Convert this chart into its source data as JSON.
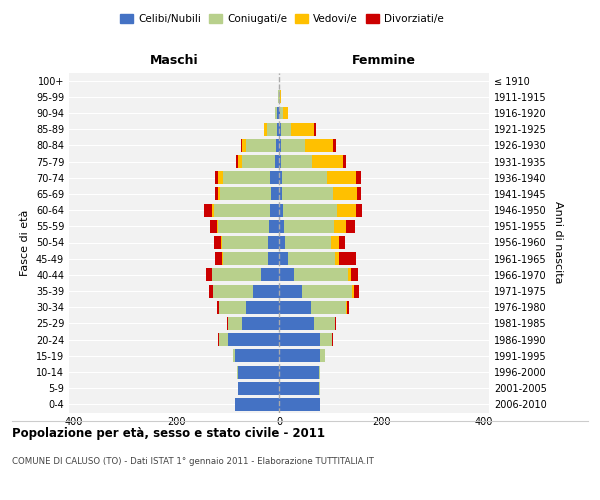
{
  "age_groups": [
    "0-4",
    "5-9",
    "10-14",
    "15-19",
    "20-24",
    "25-29",
    "30-34",
    "35-39",
    "40-44",
    "45-49",
    "50-54",
    "55-59",
    "60-64",
    "65-69",
    "70-74",
    "75-79",
    "80-84",
    "85-89",
    "90-94",
    "95-99",
    "100+"
  ],
  "birth_years": [
    "2006-2010",
    "2001-2005",
    "1996-2000",
    "1991-1995",
    "1986-1990",
    "1981-1985",
    "1976-1980",
    "1971-1975",
    "1966-1970",
    "1961-1965",
    "1956-1960",
    "1951-1955",
    "1946-1950",
    "1941-1945",
    "1936-1940",
    "1931-1935",
    "1926-1930",
    "1921-1925",
    "1916-1920",
    "1911-1915",
    "≤ 1910"
  ],
  "males_celibi": [
    85,
    80,
    80,
    85,
    100,
    72,
    65,
    50,
    35,
    22,
    22,
    20,
    18,
    15,
    18,
    8,
    6,
    4,
    3,
    0,
    0
  ],
  "males_coniugati": [
    0,
    1,
    2,
    5,
    18,
    28,
    52,
    78,
    95,
    88,
    90,
    100,
    108,
    100,
    92,
    65,
    58,
    20,
    5,
    2,
    0
  ],
  "males_vedovi": [
    0,
    0,
    0,
    0,
    0,
    0,
    0,
    1,
    1,
    2,
    2,
    2,
    5,
    5,
    10,
    8,
    8,
    5,
    0,
    0,
    0
  ],
  "males_divorziati": [
    0,
    0,
    0,
    0,
    2,
    2,
    5,
    8,
    12,
    12,
    12,
    12,
    15,
    5,
    5,
    3,
    2,
    0,
    0,
    0,
    0
  ],
  "females_nubili": [
    80,
    78,
    78,
    80,
    80,
    68,
    62,
    45,
    30,
    18,
    12,
    10,
    8,
    5,
    5,
    3,
    3,
    3,
    2,
    0,
    0
  ],
  "females_coniugate": [
    1,
    2,
    3,
    10,
    24,
    42,
    68,
    98,
    105,
    92,
    90,
    98,
    105,
    100,
    88,
    62,
    48,
    20,
    5,
    1,
    0
  ],
  "females_vedove": [
    0,
    0,
    0,
    0,
    0,
    0,
    2,
    3,
    5,
    8,
    16,
    22,
    38,
    48,
    58,
    60,
    55,
    45,
    10,
    2,
    0
  ],
  "females_divorziate": [
    0,
    0,
    0,
    0,
    2,
    2,
    5,
    10,
    15,
    32,
    10,
    18,
    12,
    8,
    10,
    5,
    5,
    5,
    0,
    0,
    0
  ],
  "colors_celibi": "#4472c4",
  "colors_coniugati": "#b8d08c",
  "colors_vedovi": "#ffc000",
  "colors_divorziati": "#cc0000",
  "title": "Popolazione per età, sesso e stato civile - 2011",
  "subtitle": "COMUNE DI CALUSO (TO) - Dati ISTAT 1° gennaio 2011 - Elaborazione TUTTITALIA.IT",
  "label_maschi": "Maschi",
  "label_femmine": "Femmine",
  "ylabel_left": "Fasce di età",
  "ylabel_right": "Anni di nascita",
  "xlim": 410,
  "legend_labels": [
    "Celibi/Nubili",
    "Coniugati/e",
    "Vedovi/e",
    "Divorziati/e"
  ],
  "bg_color": "#ffffff",
  "plot_bg": "#f2f2f2"
}
